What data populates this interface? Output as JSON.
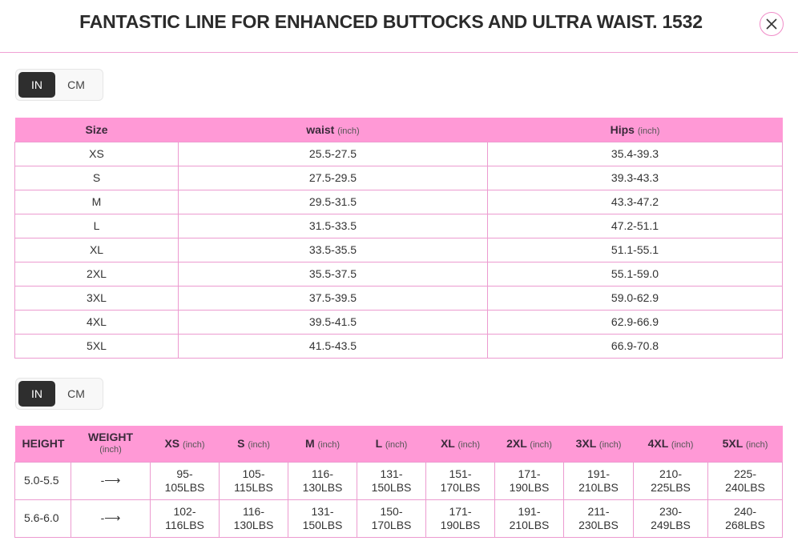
{
  "title": "FANTASTIC LINE FOR ENHANCED BUTTOCKS AND ULTRA WAIST. 1532",
  "colors": {
    "header_bg": "#ff99d6",
    "border": "#ec9bd0",
    "toggle_active": "#2e2e2e"
  },
  "unit_toggle": {
    "options": [
      "IN",
      "CM"
    ],
    "selected": "IN"
  },
  "size_table": {
    "headers": [
      {
        "label": "Size",
        "unit": ""
      },
      {
        "label": "waist",
        "unit": "(inch)"
      },
      {
        "label": "Hips",
        "unit": "(inch)"
      }
    ],
    "rows": [
      [
        "XS",
        "25.5-27.5",
        "35.4-39.3"
      ],
      [
        "S",
        "27.5-29.5",
        "39.3-43.3"
      ],
      [
        "M",
        "29.5-31.5",
        "43.3-47.2"
      ],
      [
        "L",
        "31.5-33.5",
        "47.2-51.1"
      ],
      [
        "XL",
        "33.5-35.5",
        "51.1-55.1"
      ],
      [
        "2XL",
        "35.5-37.5",
        "55.1-59.0"
      ],
      [
        "3XL",
        "37.5-39.5",
        "59.0-62.9"
      ],
      [
        "4XL",
        "39.5-41.5",
        "62.9-66.9"
      ],
      [
        "5XL",
        "41.5-43.5",
        "66.9-70.8"
      ]
    ]
  },
  "weight_table": {
    "headers": [
      {
        "label": "HEIGHT",
        "unit": ""
      },
      {
        "label": "WEIGHT",
        "unit": "(inch)"
      },
      {
        "label": "XS",
        "unit": "(inch)"
      },
      {
        "label": "S",
        "unit": "(inch)"
      },
      {
        "label": "M",
        "unit": "(inch)"
      },
      {
        "label": "L",
        "unit": "(inch)"
      },
      {
        "label": "XL",
        "unit": "(inch)"
      },
      {
        "label": "2XL",
        "unit": "(inch)"
      },
      {
        "label": "3XL",
        "unit": "(inch)"
      },
      {
        "label": "4XL",
        "unit": "(inch)"
      },
      {
        "label": "5XL",
        "unit": "(inch)"
      }
    ],
    "rows": [
      [
        "5.0-5.5",
        "-⟶",
        "95-\n105LBS",
        "105-\n115LBS",
        "116-\n130LBS",
        "131-\n150LBS",
        "151-\n170LBS",
        "171-\n190LBS",
        "191-\n210LBS",
        "210-\n225LBS",
        "225-\n240LBS"
      ],
      [
        "5.6-6.0",
        "-⟶",
        "102-\n116LBS",
        "116-\n130LBS",
        "131-\n150LBS",
        "150-\n170LBS",
        "171-\n190LBS",
        "191-\n210LBS",
        "211-\n230LBS",
        "230-\n249LBS",
        "240-\n268LBS"
      ]
    ]
  }
}
